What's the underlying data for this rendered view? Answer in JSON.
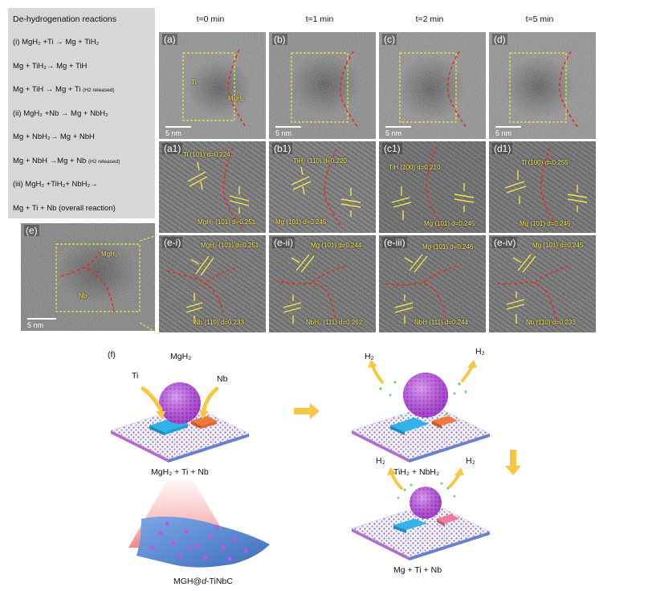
{
  "reactions": {
    "title": "De-hydrogenation reactions",
    "lines": [
      "(i) MgH₂ +Ti → Mg + TiH₂",
      "Mg + TiH₂→ Mg + TiH",
      "Mg + TiH → Mg + Ti",
      "(ii) MgH₂ +Nb → Mg + NbH₂",
      "Mg + NbH₂→ Mg + NbH",
      "Mg + NbH →Mg + Nb",
      "(iii) MgH₂ +TiH₂+ NbH₂→",
      "Mg + Ti + Nb (overall reaction)"
    ],
    "h2_released": "(H2 released)"
  },
  "times": [
    "t=0 min",
    "t=1 min",
    "t=2 min",
    "t=5 min"
  ],
  "row1": {
    "labels": [
      "(a)",
      "(b)",
      "(c)",
      "(d)"
    ],
    "ti": "Ti",
    "mgh2": "MgH₂",
    "scale": "5 nm"
  },
  "row2": {
    "labels": [
      "(a1)",
      "(b1)",
      "(c1)",
      "(d1)"
    ],
    "top": [
      "Ti (101) d=0.224",
      "TiH₂ (110) d=0.220",
      "TiH (200) d=0.210",
      "Ti (100) d=0.255"
    ],
    "bottom": [
      "MgH₂ (101) d=0.251",
      "Mg (101) d=0.245",
      "Mg (101) d=0.245",
      "Mg (101) d=0.245"
    ]
  },
  "row3": {
    "labels": [
      "(e-i)",
      "(e-ii)",
      "(e-iii)",
      "(e-iv)"
    ],
    "top": [
      "MgH₂ (101) d=0.251",
      "Mg (101) d=0.244",
      "Mg (101) d=0.246",
      "Mg (101) d=0.245"
    ],
    "bottom": [
      "Nb (110) d=0.233",
      "NbH₂ (111) d=0.262",
      "NbH (111) d=0.244",
      "Nb (110) d=0.233"
    ]
  },
  "panel_e": {
    "label": "(e)",
    "mgh2": "MgH₂",
    "nb": "Nb",
    "scale": "5 nm"
  },
  "schematic": {
    "label": "(f)",
    "mgh2_label": "MgH₂",
    "ti_label": "Ti",
    "nb_label": "Nb",
    "h2": "H₂",
    "caption1": "MgH₂ + Ti + Nb",
    "caption2": "TiH₂ + NbH₂",
    "caption3": "Mg + Ti + Nb",
    "caption4_pre": "MGH@",
    "caption4_italic": "d",
    "caption4_post": "-TiNbC"
  },
  "colors": {
    "annotation": "#f2e44a",
    "boundary": "#e0302a",
    "arrow": "#f7c744",
    "sphere": "#c353e8",
    "ti_block": "#2fb3e8",
    "nb_block": "#f0783a",
    "grid_pink": "#e46fa0",
    "grid_blue": "#5a7fd8",
    "substrate": "#5d8fd6"
  }
}
